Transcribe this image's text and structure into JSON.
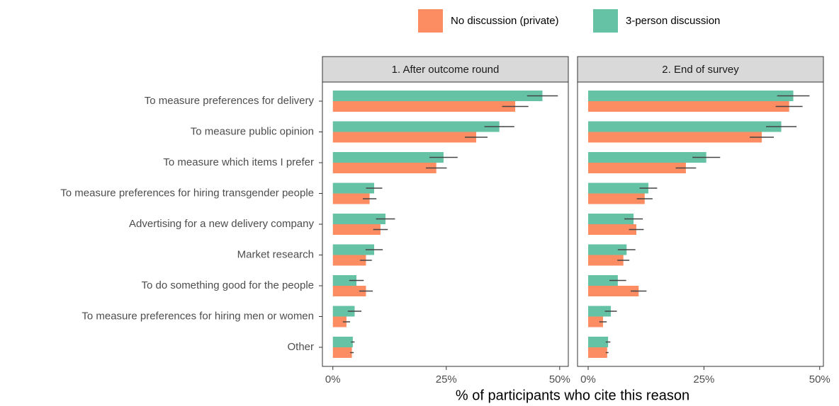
{
  "chart_data": {
    "type": "bar",
    "orientation": "horizontal",
    "xlabel": "% of participants who cite this reason",
    "categories": [
      "To measure preferences for delivery",
      "To measure public opinion",
      "To measure which items I prefer",
      "To measure preferences for hiring transgender people",
      "Advertising for a new delivery company",
      "Market research",
      "To do something good for the people",
      "To measure preferences for hiring men or women",
      "Other"
    ],
    "series": [
      {
        "name": "No discussion (private)",
        "color": "#fc8d62"
      },
      {
        "name": "3-person discussion",
        "color": "#66c2a5"
      }
    ],
    "facets": [
      {
        "title": "1. After outcome round",
        "xlim": [
          -2.3,
          51.9
        ],
        "xticks": [
          {
            "value": 0,
            "label": "0%"
          },
          {
            "value": 25,
            "label": "25%"
          },
          {
            "value": 50,
            "label": "50%"
          }
        ],
        "series": [
          {
            "values": [
              40.2,
              31.6,
              22.8,
              8.1,
              10.5,
              7.3,
              7.3,
              3.0,
              4.2
            ],
            "errors": [
              2.9,
              2.5,
              2.3,
              1.5,
              1.6,
              1.3,
              1.5,
              0.8,
              0.4
            ]
          },
          {
            "values": [
              46.2,
              36.7,
              24.4,
              9.1,
              11.6,
              9.1,
              5.2,
              4.8,
              4.4
            ],
            "errors": [
              3.4,
              3.3,
              3.1,
              1.8,
              2.1,
              1.9,
              1.6,
              1.5,
              0.4
            ]
          }
        ]
      },
      {
        "title": "2. End of survey",
        "xlim": [
          -2.3,
          50.8
        ],
        "xticks": [
          {
            "value": 0,
            "label": "0%"
          },
          {
            "value": 25,
            "label": "25%"
          },
          {
            "value": 50,
            "label": "50%"
          }
        ],
        "series": [
          {
            "values": [
              43.4,
              37.5,
              21.1,
              12.2,
              10.4,
              7.6,
              10.9,
              3.2,
              4.1
            ],
            "errors": [
              2.9,
              2.6,
              2.2,
              1.7,
              1.6,
              1.3,
              1.7,
              0.8,
              0.3
            ]
          },
          {
            "values": [
              44.3,
              41.7,
              25.5,
              13.0,
              9.8,
              8.3,
              6.4,
              4.9,
              4.3
            ],
            "errors": [
              3.5,
              3.3,
              3.0,
              1.9,
              2.0,
              1.9,
              1.8,
              1.3,
              0.5
            ]
          }
        ]
      }
    ]
  }
}
